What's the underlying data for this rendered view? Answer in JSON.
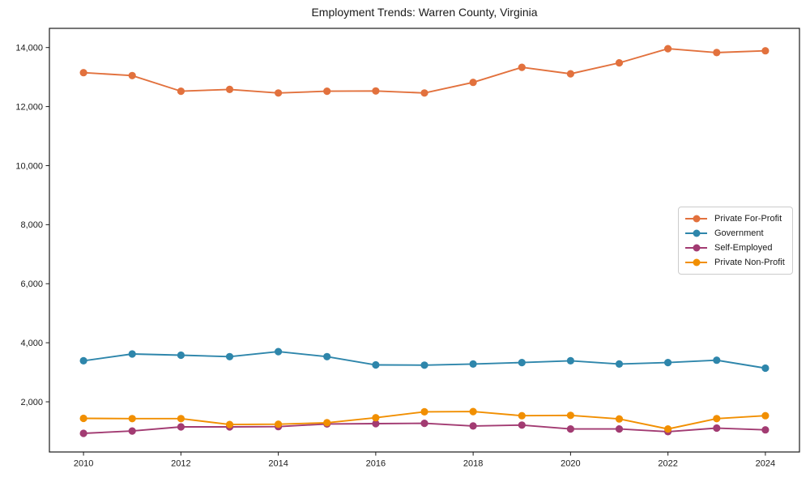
{
  "chart_data": {
    "type": "line",
    "title": "Employment Trends: Warren County, Virginia",
    "x": [
      2010,
      2011,
      2012,
      2013,
      2014,
      2015,
      2016,
      2017,
      2018,
      2019,
      2020,
      2021,
      2022,
      2023,
      2024
    ],
    "series": [
      {
        "name": "Private For-Profit",
        "color": "#E2713D",
        "values": [
          13150,
          13050,
          12520,
          12580,
          12460,
          12520,
          12530,
          12460,
          12820,
          13330,
          13110,
          13480,
          13960,
          13830,
          13890
        ]
      },
      {
        "name": "Government",
        "color": "#2E86AB",
        "values": [
          3390,
          3620,
          3580,
          3530,
          3700,
          3530,
          3250,
          3240,
          3280,
          3330,
          3390,
          3280,
          3330,
          3410,
          3140
        ]
      },
      {
        "name": "Self-Employed",
        "color": "#A23B72",
        "values": [
          930,
          1010,
          1150,
          1150,
          1160,
          1250,
          1260,
          1270,
          1180,
          1210,
          1080,
          1080,
          990,
          1110,
          1050
        ]
      },
      {
        "name": "Private Non-Profit",
        "color": "#F18F01",
        "values": [
          1440,
          1430,
          1430,
          1230,
          1240,
          1290,
          1460,
          1660,
          1670,
          1530,
          1540,
          1420,
          1080,
          1430,
          1530
        ]
      }
    ],
    "xticks": [
      2010,
      2012,
      2014,
      2016,
      2018,
      2020,
      2022,
      2024
    ],
    "yticks": [
      2000,
      4000,
      6000,
      8000,
      10000,
      12000,
      14000
    ],
    "ytick_labels": [
      "2,000",
      "4,000",
      "6,000",
      "8,000",
      "10,000",
      "12,000",
      "14,000"
    ],
    "xlim": [
      2009.3,
      2024.7
    ],
    "ylim": [
      300,
      14650
    ],
    "grid": false,
    "legend_position": "center-right",
    "axis_color": "#1a1a1a",
    "text_color": "#1a1a1a",
    "xlabel": "",
    "ylabel": ""
  }
}
